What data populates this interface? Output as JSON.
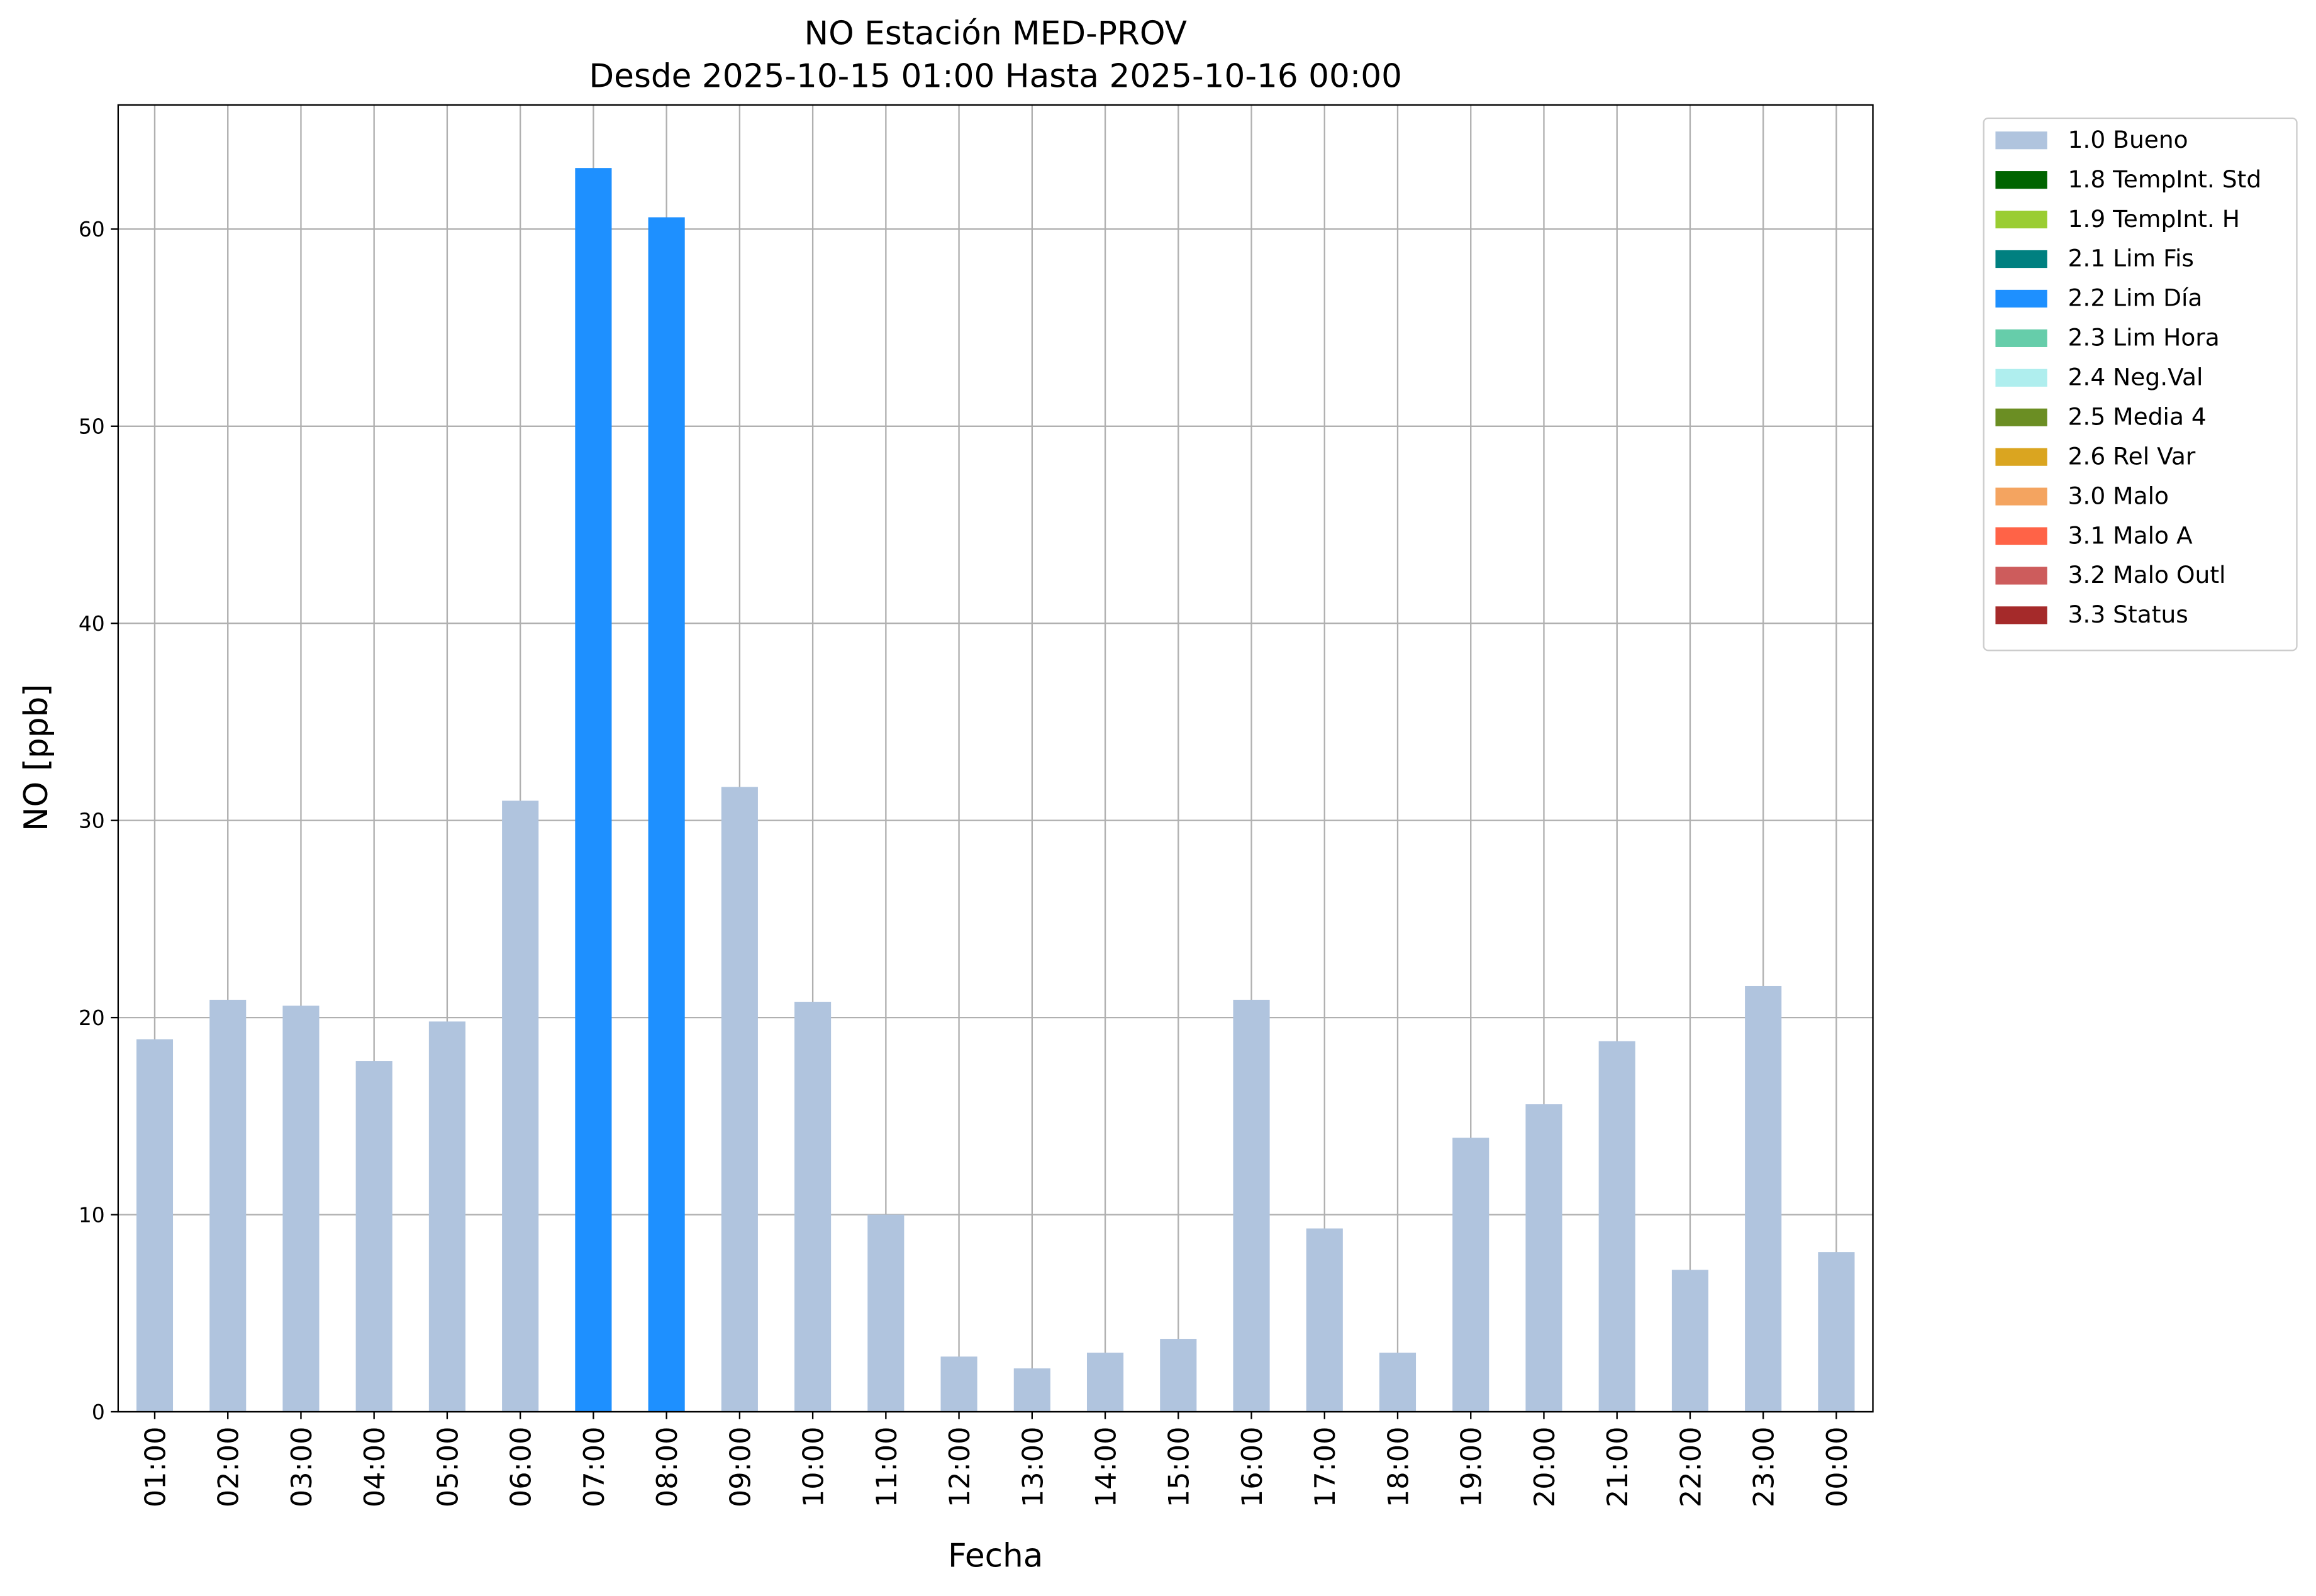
{
  "chart_data": {
    "type": "stacked_bar",
    "title": "NO Estación MED-PROV",
    "subtitle": "Desde 2025-10-15 01:00 Hasta 2025-10-16 00:00",
    "x_label": "Fecha",
    "y_label": "NO [ppb]",
    "categories": [
      "01:00",
      "02:00",
      "03:00",
      "04:00",
      "05:00",
      "06:00",
      "07:00",
      "08:00",
      "09:00",
      "10:00",
      "11:00",
      "12:00",
      "13:00",
      "14:00",
      "15:00",
      "16:00",
      "17:00",
      "18:00",
      "19:00",
      "20:00",
      "21:00",
      "22:00",
      "23:00",
      "00:00"
    ],
    "series": [
      {
        "name": "1.0 Bueno",
        "color": "#b0c4de",
        "values": [
          18.9,
          20.9,
          20.6,
          17.8,
          19.8,
          31.0,
          null,
          null,
          31.7,
          20.8,
          10.0,
          2.8,
          2.2,
          3.0,
          3.7,
          20.9,
          9.3,
          3.0,
          13.9,
          15.6,
          18.8,
          7.2,
          21.6,
          8.1
        ]
      },
      {
        "name": "1.8 TempInt. Std",
        "color": "#006400",
        "values": [
          null,
          null,
          null,
          null,
          null,
          null,
          null,
          null,
          null,
          null,
          null,
          null,
          null,
          null,
          null,
          null,
          null,
          null,
          null,
          null,
          null,
          null,
          null,
          null
        ]
      },
      {
        "name": "1.9 TempInt. H",
        "color": "#9acd32",
        "values": [
          null,
          null,
          null,
          null,
          null,
          null,
          null,
          null,
          null,
          null,
          null,
          null,
          null,
          null,
          null,
          null,
          null,
          null,
          null,
          null,
          null,
          null,
          null,
          null
        ]
      },
      {
        "name": "2.1 Lim Fis",
        "color": "#008080",
        "values": [
          null,
          null,
          null,
          null,
          null,
          null,
          null,
          null,
          null,
          null,
          null,
          null,
          null,
          null,
          null,
          null,
          null,
          null,
          null,
          null,
          null,
          null,
          null,
          null
        ]
      },
      {
        "name": "2.2 Lim Día",
        "color": "#1e90ff",
        "values": [
          null,
          null,
          null,
          null,
          null,
          null,
          63.1,
          60.6,
          null,
          null,
          null,
          null,
          null,
          null,
          null,
          null,
          null,
          null,
          null,
          null,
          null,
          null,
          null,
          null
        ]
      },
      {
        "name": "2.3 Lim Hora",
        "color": "#66cdaa",
        "values": [
          null,
          null,
          null,
          null,
          null,
          null,
          null,
          null,
          null,
          null,
          null,
          null,
          null,
          null,
          null,
          null,
          null,
          null,
          null,
          null,
          null,
          null,
          null,
          null
        ]
      },
      {
        "name": "2.4 Neg.Val",
        "color": "#afeeee",
        "values": [
          null,
          null,
          null,
          null,
          null,
          null,
          null,
          null,
          null,
          null,
          null,
          null,
          null,
          null,
          null,
          null,
          null,
          null,
          null,
          null,
          null,
          null,
          null,
          null
        ]
      },
      {
        "name": "2.5 Media 4",
        "color": "#6b8e23",
        "values": [
          null,
          null,
          null,
          null,
          null,
          null,
          null,
          null,
          null,
          null,
          null,
          null,
          null,
          null,
          null,
          null,
          null,
          null,
          null,
          null,
          null,
          null,
          null,
          null
        ]
      },
      {
        "name": "2.6 Rel Var",
        "color": "#daa520",
        "values": [
          null,
          null,
          null,
          null,
          null,
          null,
          null,
          null,
          null,
          null,
          null,
          null,
          null,
          null,
          null,
          null,
          null,
          null,
          null,
          null,
          null,
          null,
          null,
          null
        ]
      },
      {
        "name": "3.0 Malo",
        "color": "#f4a460",
        "values": [
          null,
          null,
          null,
          null,
          null,
          null,
          null,
          null,
          null,
          null,
          null,
          null,
          null,
          null,
          null,
          null,
          null,
          null,
          null,
          null,
          null,
          null,
          null,
          null
        ]
      },
      {
        "name": "3.1 Malo A",
        "color": "#ff6347",
        "values": [
          null,
          null,
          null,
          null,
          null,
          null,
          null,
          null,
          null,
          null,
          null,
          null,
          null,
          null,
          null,
          null,
          null,
          null,
          null,
          null,
          null,
          null,
          null,
          null
        ]
      },
      {
        "name": "3.2 Malo Outl",
        "color": "#cd5c5c",
        "values": [
          null,
          null,
          null,
          null,
          null,
          null,
          null,
          null,
          null,
          null,
          null,
          null,
          null,
          null,
          null,
          null,
          null,
          null,
          null,
          null,
          null,
          null,
          null,
          null
        ]
      },
      {
        "name": "3.3 Status",
        "color": "#a52a2a",
        "values": [
          null,
          null,
          null,
          null,
          null,
          null,
          null,
          null,
          null,
          null,
          null,
          null,
          null,
          null,
          null,
          null,
          null,
          null,
          null,
          null,
          null,
          null,
          null,
          null
        ]
      }
    ],
    "ylim": [
      0,
      66.3
    ],
    "yticks": [
      0,
      10,
      20,
      30,
      40,
      50,
      60
    ],
    "grid": true,
    "legend": "outside-right"
  }
}
